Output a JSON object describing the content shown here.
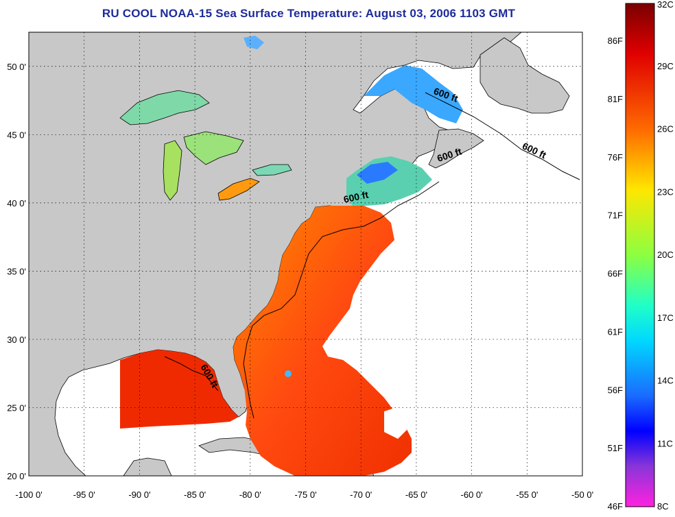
{
  "title": "RU COOL  NOAA-15  Sea Surface Temperature:  August 03, 2006 1103 GMT",
  "map": {
    "lon_range": [
      -100,
      -50
    ],
    "lat_range": [
      20,
      52.5
    ],
    "lon_ticks": [
      "-100 0'",
      "-95 0'",
      "-90 0'",
      "-85 0'",
      "-80 0'",
      "-75 0'",
      "-70 0'",
      "-65 0'",
      "-60 0'",
      "-55 0'",
      "-50 0'"
    ],
    "lat_ticks": [
      "20 0'",
      "25 0'",
      "30 0'",
      "35 0'",
      "40 0'",
      "45 0'",
      "50 0'"
    ],
    "land_color": "#c8c8c8",
    "no_data_color": "#ffffff",
    "grid": "dotted",
    "contour_label": "600 ft",
    "contour_labels": [
      {
        "text": "600 ft",
        "lon": -63.5,
        "lat": 48.0
      },
      {
        "text": "600 ft",
        "lon": -55.5,
        "lat": 44.0
      },
      {
        "text": "600 ft",
        "lon": -63.0,
        "lat": 43.0
      },
      {
        "text": "600 ft",
        "lon": -71.5,
        "lat": 40.0
      },
      {
        "text": "600 ft",
        "lon": -84.5,
        "lat": 28.0
      }
    ]
  },
  "colorbar": {
    "celsius": [
      "32C",
      "29C",
      "26C",
      "23C",
      "20C",
      "17C",
      "14C",
      "11C",
      "8C"
    ],
    "fahrenheit": [
      "86F",
      "81F",
      "76F",
      "71F",
      "66F",
      "61F",
      "56F",
      "51F",
      "46F"
    ],
    "colors": [
      "#8a0000",
      "#ff1a00",
      "#ff7a00",
      "#ffd500",
      "#bfff3a",
      "#33ffb0",
      "#00d8ff",
      "#1f6bff",
      "#0000ff",
      "#7a2bd6",
      "#ff22dd"
    ]
  }
}
